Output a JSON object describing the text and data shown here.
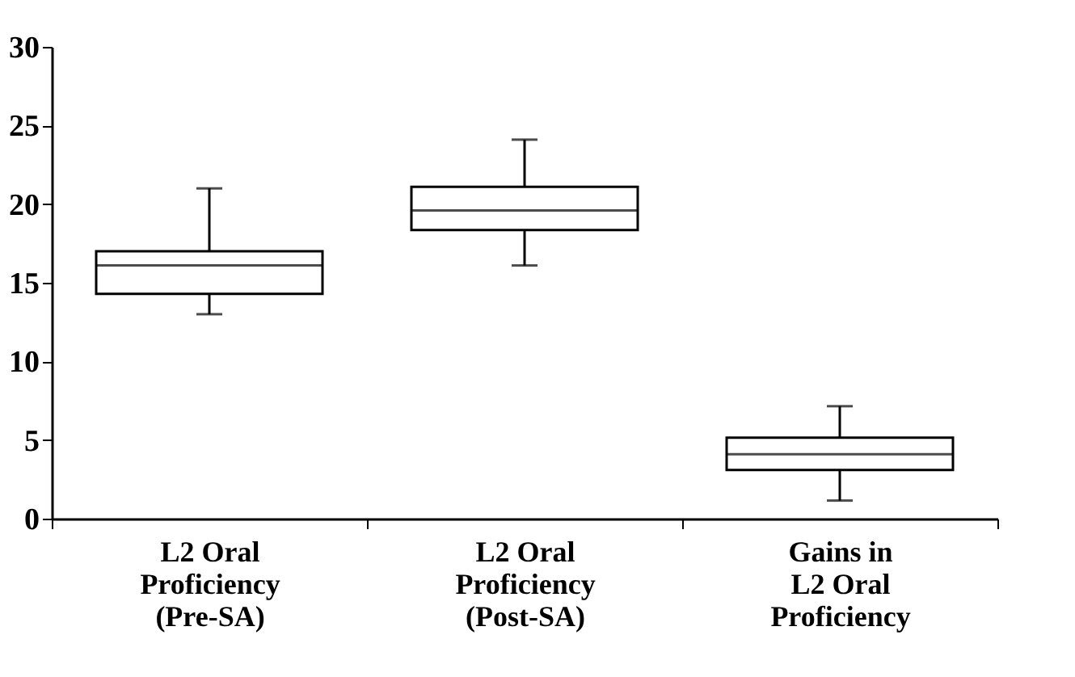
{
  "chart_data": {
    "type": "box",
    "categories": [
      "L2 Oral\nProficiency\n(Pre-SA)",
      "L2 Oral\nProficiency\n(Post-SA)",
      "Gains in\nL2 Oral\nProficiency"
    ],
    "boxes": [
      {
        "low": 13.0,
        "q1": 14.3,
        "median": 16.1,
        "q3": 17.0,
        "high": 21.0
      },
      {
        "low": 16.1,
        "q1": 18.35,
        "median": 19.6,
        "q3": 21.1,
        "high": 24.1
      },
      {
        "low": 1.15,
        "q1": 3.1,
        "median": 4.1,
        "q3": 5.15,
        "high": 7.15
      }
    ],
    "ylim": [
      0,
      30
    ],
    "yticks": [
      0,
      5,
      10,
      15,
      20,
      25,
      30
    ],
    "grid": false
  }
}
